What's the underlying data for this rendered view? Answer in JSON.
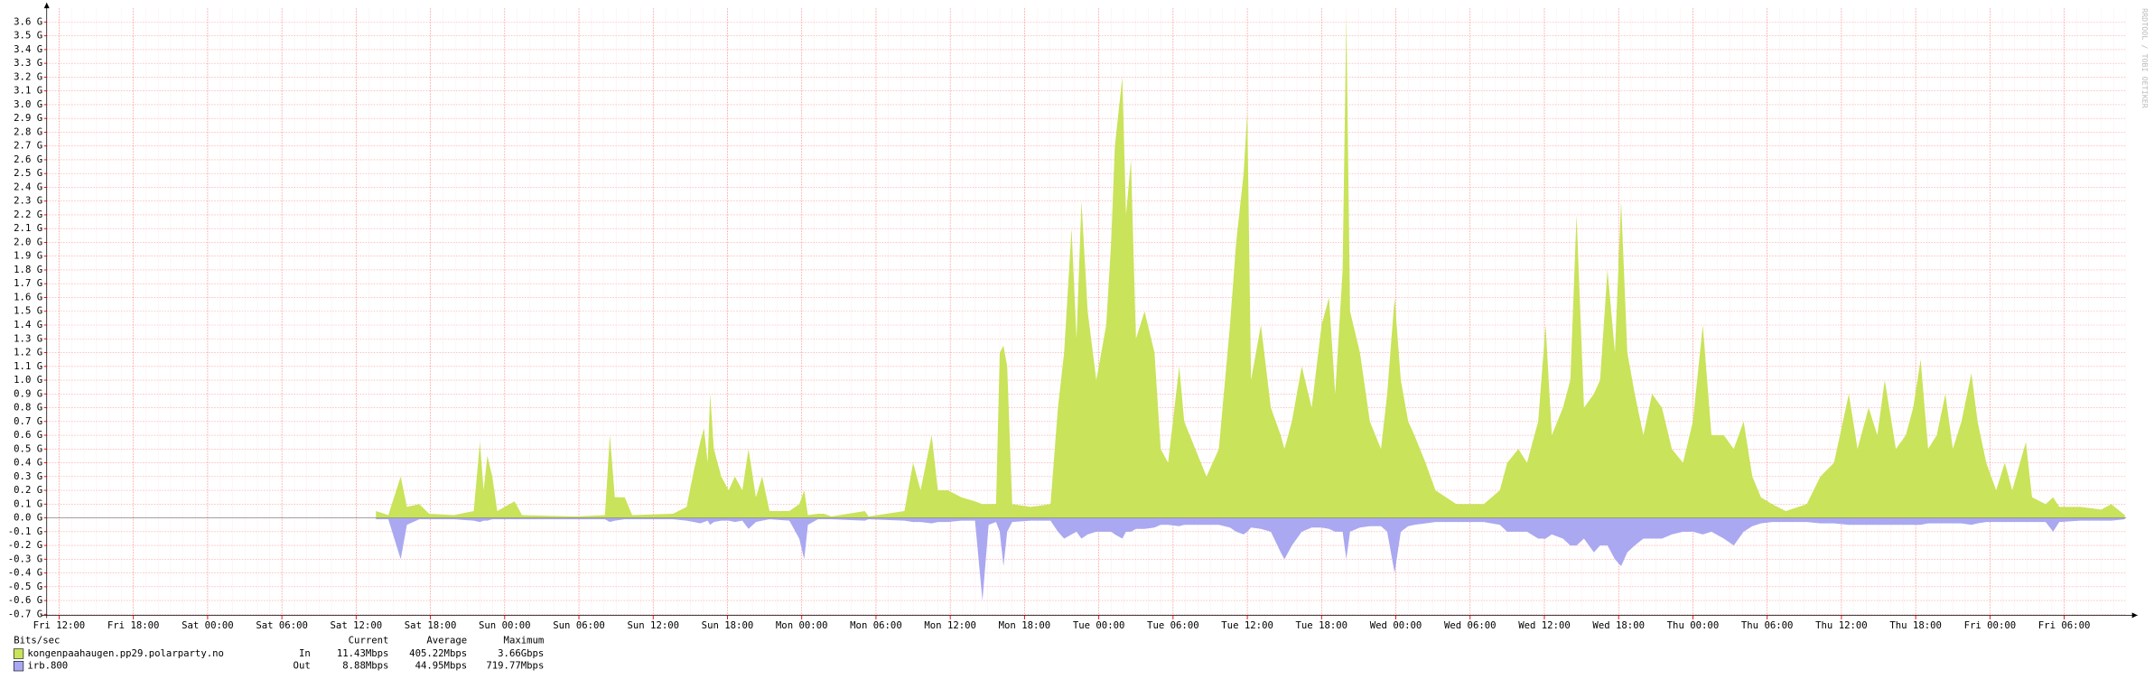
{
  "chart_data": {
    "type": "area",
    "y_label": "Bits/sec",
    "legend_headers": [
      "Current",
      "Average",
      "Maximum"
    ],
    "watermark": "RRDTOOL / TOBI OETIKER",
    "grid": true,
    "xlim": [
      -1,
      167
    ],
    "ylim": [
      -0.7,
      3.7
    ],
    "xticks": [
      {
        "value": 0,
        "label": "Fri 12:00"
      },
      {
        "value": 6,
        "label": "Fri 18:00"
      },
      {
        "value": 12,
        "label": "Sat 00:00"
      },
      {
        "value": 18,
        "label": "Sat 06:00"
      },
      {
        "value": 24,
        "label": "Sat 12:00"
      },
      {
        "value": 30,
        "label": "Sat 18:00"
      },
      {
        "value": 36,
        "label": "Sun 00:00"
      },
      {
        "value": 42,
        "label": "Sun 06:00"
      },
      {
        "value": 48,
        "label": "Sun 12:00"
      },
      {
        "value": 54,
        "label": "Sun 18:00"
      },
      {
        "value": 60,
        "label": "Mon 00:00"
      },
      {
        "value": 66,
        "label": "Mon 06:00"
      },
      {
        "value": 72,
        "label": "Mon 12:00"
      },
      {
        "value": 78,
        "label": "Mon 18:00"
      },
      {
        "value": 84,
        "label": "Tue 00:00"
      },
      {
        "value": 90,
        "label": "Tue 06:00"
      },
      {
        "value": 96,
        "label": "Tue 12:00"
      },
      {
        "value": 102,
        "label": "Tue 18:00"
      },
      {
        "value": 108,
        "label": "Wed 00:00"
      },
      {
        "value": 114,
        "label": "Wed 06:00"
      },
      {
        "value": 120,
        "label": "Wed 12:00"
      },
      {
        "value": 126,
        "label": "Wed 18:00"
      },
      {
        "value": 132,
        "label": "Thu 00:00"
      },
      {
        "value": 138,
        "label": "Thu 06:00"
      },
      {
        "value": 144,
        "label": "Thu 12:00"
      },
      {
        "value": 150,
        "label": "Thu 18:00"
      },
      {
        "value": 156,
        "label": "Fri 00:00"
      },
      {
        "value": 162,
        "label": "Fri 06:00"
      }
    ],
    "yticks": [
      {
        "value": -0.7,
        "label": "-0.7 G"
      },
      {
        "value": -0.6,
        "label": "-0.6 G"
      },
      {
        "value": -0.5,
        "label": "-0.5 G"
      },
      {
        "value": -0.4,
        "label": "-0.4 G"
      },
      {
        "value": -0.3,
        "label": "-0.3 G"
      },
      {
        "value": -0.2,
        "label": "-0.2 G"
      },
      {
        "value": -0.1,
        "label": "-0.1 G"
      },
      {
        "value": 0,
        "label": "0.0 G"
      },
      {
        "value": 0.1,
        "label": "0.1 G"
      },
      {
        "value": 0.2,
        "label": "0.2 G"
      },
      {
        "value": 0.3,
        "label": "0.3 G"
      },
      {
        "value": 0.4,
        "label": "0.4 G"
      },
      {
        "value": 0.5,
        "label": "0.5 G"
      },
      {
        "value": 0.6,
        "label": "0.6 G"
      },
      {
        "value": 0.7,
        "label": "0.7 G"
      },
      {
        "value": 0.8,
        "label": "0.8 G"
      },
      {
        "value": 0.9,
        "label": "0.9 G"
      },
      {
        "value": 1.0,
        "label": "1.0 G"
      },
      {
        "value": 1.1,
        "label": "1.1 G"
      },
      {
        "value": 1.2,
        "label": "1.2 G"
      },
      {
        "value": 1.3,
        "label": "1.3 G"
      },
      {
        "value": 1.4,
        "label": "1.4 G"
      },
      {
        "value": 1.5,
        "label": "1.5 G"
      },
      {
        "value": 1.6,
        "label": "1.6 G"
      },
      {
        "value": 1.7,
        "label": "1.7 G"
      },
      {
        "value": 1.8,
        "label": "1.8 G"
      },
      {
        "value": 1.9,
        "label": "1.9 G"
      },
      {
        "value": 2.0,
        "label": "2.0 G"
      },
      {
        "value": 2.1,
        "label": "2.1 G"
      },
      {
        "value": 2.2,
        "label": "2.2 G"
      },
      {
        "value": 2.3,
        "label": "2.3 G"
      },
      {
        "value": 2.4,
        "label": "2.4 G"
      },
      {
        "value": 2.5,
        "label": "2.5 G"
      },
      {
        "value": 2.6,
        "label": "2.6 G"
      },
      {
        "value": 2.7,
        "label": "2.7 G"
      },
      {
        "value": 2.8,
        "label": "2.8 G"
      },
      {
        "value": 2.9,
        "label": "2.9 G"
      },
      {
        "value": 3.0,
        "label": "3.0 G"
      },
      {
        "value": 3.1,
        "label": "3.1 G"
      },
      {
        "value": 3.2,
        "label": "3.2 G"
      },
      {
        "value": 3.3,
        "label": "3.3 G"
      },
      {
        "value": 3.4,
        "label": "3.4 G"
      },
      {
        "value": 3.5,
        "label": "3.5 G"
      },
      {
        "value": 3.6,
        "label": "3.6 G"
      }
    ],
    "x": [
      25.6,
      26.6,
      27.6,
      28.1,
      29.1,
      29.9,
      31.9,
      33.5,
      34.0,
      34.3,
      34.6,
      35.0,
      35.4,
      36.8,
      37.4,
      41.8,
      44.1,
      44.5,
      44.9,
      45.7,
      46.3,
      49.6,
      50.7,
      51.3,
      51.8,
      52.1,
      52.4,
      52.6,
      52.9,
      53.5,
      54.1,
      54.6,
      55.2,
      55.7,
      56.3,
      56.8,
      57.4,
      59.0,
      59.8,
      60.2,
      60.5,
      61.3,
      61.8,
      62.4,
      65.1,
      65.4,
      68.3,
      69.0,
      69.6,
      70.5,
      71.0,
      71.8,
      72.9,
      74.0,
      74.6,
      75.1,
      75.7,
      76.0,
      76.3,
      76.6,
      77.0,
      78.5,
      80.1,
      80.7,
      81.2,
      81.8,
      82.2,
      82.6,
      83.1,
      83.8,
      84.6,
      85.0,
      85.3,
      85.9,
      86.2,
      86.6,
      87.0,
      87.7,
      88.5,
      89.0,
      89.6,
      90.5,
      90.9,
      91.8,
      92.7,
      93.7,
      94.6,
      95.1,
      95.7,
      96.0,
      96.3,
      97.1,
      97.9,
      98.7,
      99.0,
      99.6,
      100.4,
      101.2,
      102.0,
      102.6,
      103.1,
      103.7,
      104.0,
      104.3,
      105.1,
      105.9,
      106.8,
      107.3,
      107.9,
      108.4,
      109.0,
      109.5,
      110.4,
      111.2,
      112.9,
      115.1,
      116.4,
      117.0,
      117.9,
      118.6,
      119.5,
      120.1,
      120.6,
      121.5,
      122.1,
      122.6,
      123.2,
      124.0,
      124.5,
      125.1,
      125.7,
      126.2,
      126.7,
      127.3,
      128.0,
      128.7,
      129.5,
      130.3,
      131.2,
      132.0,
      132.8,
      133.5,
      134.5,
      135.3,
      136.1,
      136.8,
      137.5,
      138.4,
      139.5,
      141.2,
      142.3,
      143.4,
      144.6,
      145.3,
      146.2,
      146.9,
      147.5,
      148.4,
      149.2,
      149.8,
      150.4,
      151.0,
      151.7,
      152.4,
      153.0,
      153.7,
      154.5,
      155.0,
      155.7,
      156.5,
      157.2,
      157.8,
      158.9,
      159.4,
      160.5,
      161.1,
      161.6,
      163.3,
      165.0,
      165.8,
      166.9
    ],
    "series": [
      {
        "name": "kongenpaahaugen.pp29.polarparty.no",
        "direction": "In",
        "color": "#c9e35a",
        "current": "11.43Mbps",
        "average": "405.22Mbps",
        "maximum": "3.66Gbps",
        "values": [
          0.05,
          0.02,
          0.3,
          0.08,
          0.1,
          0.03,
          0.02,
          0.05,
          0.55,
          0.2,
          0.45,
          0.3,
          0.05,
          0.12,
          0.02,
          0.01,
          0.02,
          0.6,
          0.15,
          0.15,
          0.02,
          0.03,
          0.08,
          0.35,
          0.55,
          0.65,
          0.4,
          0.9,
          0.5,
          0.3,
          0.2,
          0.3,
          0.2,
          0.5,
          0.15,
          0.3,
          0.05,
          0.05,
          0.1,
          0.2,
          0.02,
          0.03,
          0.03,
          0.01,
          0.05,
          0.01,
          0.05,
          0.4,
          0.2,
          0.6,
          0.2,
          0.2,
          0.15,
          0.12,
          0.1,
          0.1,
          0.1,
          1.2,
          1.25,
          1.1,
          0.1,
          0.08,
          0.1,
          0.8,
          1.2,
          2.1,
          1.3,
          2.3,
          1.5,
          1.0,
          1.4,
          2.0,
          2.7,
          3.2,
          2.2,
          2.6,
          1.3,
          1.5,
          1.2,
          0.5,
          0.4,
          1.1,
          0.7,
          0.5,
          0.3,
          0.5,
          1.4,
          2.0,
          2.5,
          2.95,
          1.0,
          1.4,
          0.8,
          0.6,
          0.5,
          0.7,
          1.1,
          0.8,
          1.4,
          1.6,
          0.9,
          1.8,
          3.65,
          1.5,
          1.2,
          0.7,
          0.5,
          0.9,
          1.6,
          1.0,
          0.7,
          0.6,
          0.4,
          0.2,
          0.1,
          0.1,
          0.2,
          0.4,
          0.5,
          0.4,
          0.7,
          1.4,
          0.6,
          0.8,
          1.0,
          2.2,
          0.8,
          0.9,
          1.0,
          1.8,
          1.2,
          2.3,
          1.2,
          0.9,
          0.6,
          0.9,
          0.8,
          0.5,
          0.4,
          0.7,
          1.4,
          0.6,
          0.6,
          0.5,
          0.7,
          0.3,
          0.15,
          0.1,
          0.05,
          0.1,
          0.3,
          0.4,
          0.9,
          0.5,
          0.8,
          0.6,
          1.0,
          0.5,
          0.6,
          0.8,
          1.15,
          0.5,
          0.6,
          0.9,
          0.5,
          0.7,
          1.05,
          0.7,
          0.4,
          0.2,
          0.4,
          0.2,
          0.55,
          0.15,
          0.1,
          0.15,
          0.08,
          0.08,
          0.06,
          0.1,
          0.02
        ]
      },
      {
        "name": "irb.800",
        "direction": "Out",
        "color": "#aaa8f0",
        "current": "8.88Mbps",
        "average": "44.95Mbps",
        "maximum": "719.77Mbps",
        "values": [
          -0.01,
          -0.01,
          -0.3,
          -0.05,
          -0.01,
          -0.01,
          -0.01,
          -0.02,
          -0.03,
          -0.02,
          -0.02,
          -0.01,
          -0.01,
          -0.01,
          -0.01,
          -0.01,
          -0.01,
          -0.03,
          -0.02,
          -0.01,
          -0.01,
          -0.01,
          -0.02,
          -0.03,
          -0.04,
          -0.03,
          -0.02,
          -0.05,
          -0.03,
          -0.02,
          -0.02,
          -0.03,
          -0.02,
          -0.08,
          -0.03,
          -0.02,
          -0.01,
          -0.02,
          -0.15,
          -0.3,
          -0.05,
          -0.01,
          -0.01,
          -0.01,
          -0.02,
          -0.01,
          -0.02,
          -0.03,
          -0.03,
          -0.04,
          -0.03,
          -0.03,
          -0.02,
          -0.02,
          -0.6,
          -0.05,
          -0.03,
          -0.1,
          -0.35,
          -0.1,
          -0.03,
          -0.02,
          -0.02,
          -0.1,
          -0.15,
          -0.12,
          -0.1,
          -0.15,
          -0.12,
          -0.1,
          -0.1,
          -0.1,
          -0.12,
          -0.15,
          -0.1,
          -0.1,
          -0.08,
          -0.08,
          -0.07,
          -0.05,
          -0.05,
          -0.06,
          -0.05,
          -0.05,
          -0.05,
          -0.05,
          -0.07,
          -0.1,
          -0.12,
          -0.1,
          -0.07,
          -0.08,
          -0.1,
          -0.25,
          -0.3,
          -0.2,
          -0.1,
          -0.07,
          -0.07,
          -0.08,
          -0.1,
          -0.1,
          -0.3,
          -0.1,
          -0.07,
          -0.06,
          -0.06,
          -0.1,
          -0.4,
          -0.1,
          -0.06,
          -0.05,
          -0.04,
          -0.03,
          -0.03,
          -0.03,
          -0.05,
          -0.1,
          -0.1,
          -0.1,
          -0.15,
          -0.15,
          -0.12,
          -0.15,
          -0.2,
          -0.2,
          -0.15,
          -0.25,
          -0.2,
          -0.2,
          -0.3,
          -0.35,
          -0.25,
          -0.2,
          -0.15,
          -0.15,
          -0.15,
          -0.12,
          -0.1,
          -0.1,
          -0.12,
          -0.1,
          -0.15,
          -0.2,
          -0.1,
          -0.06,
          -0.04,
          -0.03,
          -0.03,
          -0.03,
          -0.04,
          -0.04,
          -0.05,
          -0.05,
          -0.05,
          -0.05,
          -0.05,
          -0.05,
          -0.05,
          -0.05,
          -0.05,
          -0.04,
          -0.04,
          -0.04,
          -0.04,
          -0.04,
          -0.05,
          -0.04,
          -0.03,
          -0.03,
          -0.03,
          -0.03,
          -0.03,
          -0.03,
          -0.03,
          -0.1,
          -0.03,
          -0.02,
          -0.02,
          -0.02,
          -0.01
        ]
      }
    ]
  }
}
